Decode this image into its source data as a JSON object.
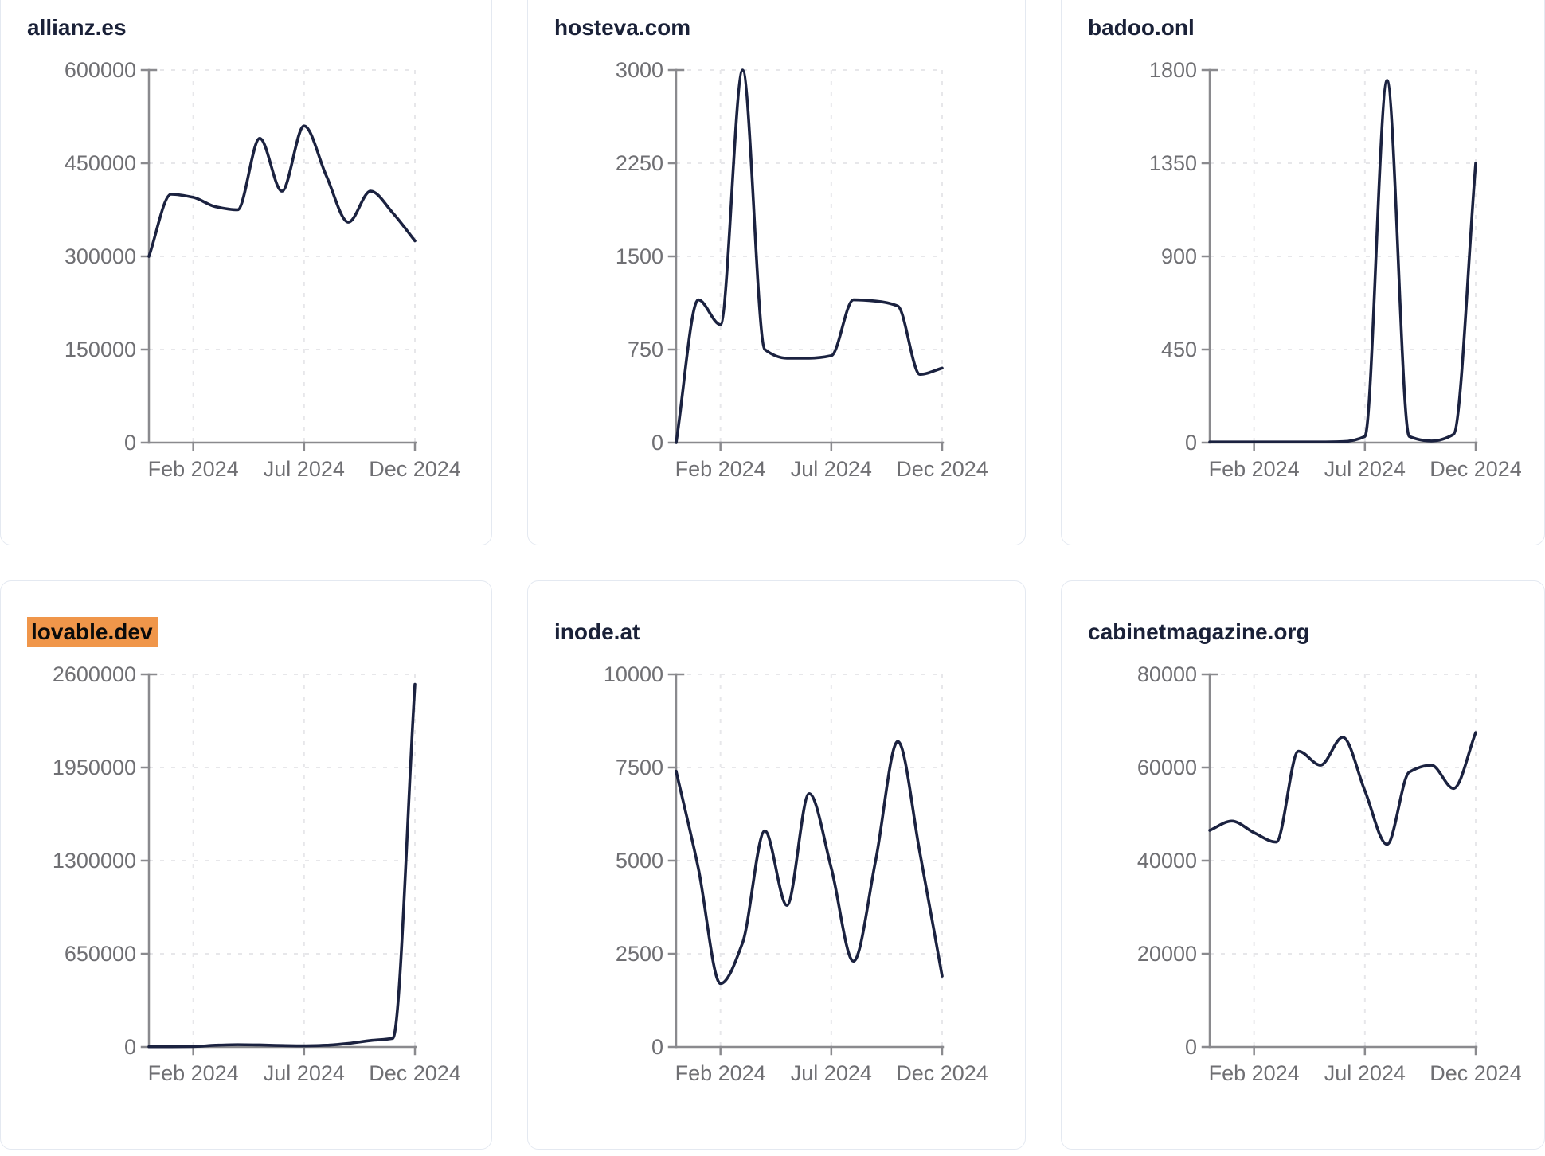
{
  "page": {
    "background": "#ffffff",
    "layout": "3x2-grid-of-line-charts"
  },
  "colors": {
    "line": "#1b2240",
    "title": "#1a2138",
    "axis": "#8a8a8e",
    "tick_label": "#6f6f73",
    "gridline": "#e7e7ea",
    "card_border": "#e4e9f1",
    "highlight": "#f0964a",
    "highlight_text": "#0b0b0b"
  },
  "chart_data": [
    {
      "type": "line",
      "title": "allianz.es",
      "highlighted": false,
      "x": [
        "Dec 2023",
        "Jan 2024",
        "Feb 2024",
        "Mar 2024",
        "Apr 2024",
        "May 2024",
        "Jun 2024",
        "Jul 2024",
        "Aug 2024",
        "Sep 2024",
        "Oct 2024",
        "Nov 2024",
        "Dec 2024"
      ],
      "values": [
        300000,
        400000,
        395000,
        380000,
        375000,
        490000,
        405000,
        510000,
        430000,
        355000,
        405000,
        370000,
        325000
      ],
      "ylim": [
        0,
        600000
      ],
      "y_tick_labels": [
        "600000",
        "450000",
        "300000",
        "150000",
        "0"
      ],
      "x_tick_labels": [
        "Feb 2024",
        "Jul 2024",
        "Dec 2024"
      ],
      "x_tick_indices": [
        2,
        7,
        12
      ],
      "grid": true,
      "legend": "none"
    },
    {
      "type": "line",
      "title": "hosteva.com",
      "highlighted": false,
      "x": [
        "Dec 2023",
        "Jan 2024",
        "Feb 2024",
        "Mar 2024",
        "Apr 2024",
        "May 2024",
        "Jun 2024",
        "Jul 2024",
        "Aug 2024",
        "Sep 2024",
        "Oct 2024",
        "Nov 2024",
        "Dec 2024"
      ],
      "values": [
        0,
        1150,
        950,
        3000,
        750,
        680,
        680,
        700,
        1150,
        1140,
        1100,
        550,
        600
      ],
      "ylim": [
        0,
        3000
      ],
      "y_tick_labels": [
        "3000",
        "2250",
        "1500",
        "750",
        "0"
      ],
      "x_tick_labels": [
        "Feb 2024",
        "Jul 2024",
        "Dec 2024"
      ],
      "x_tick_indices": [
        2,
        7,
        12
      ],
      "grid": true,
      "legend": "none"
    },
    {
      "type": "line",
      "title": "badoo.onl",
      "highlighted": false,
      "x": [
        "Dec 2023",
        "Jan 2024",
        "Feb 2024",
        "Mar 2024",
        "Apr 2024",
        "May 2024",
        "Jun 2024",
        "Jul 2024",
        "Aug 2024",
        "Sep 2024",
        "Oct 2024",
        "Nov 2024",
        "Dec 2024"
      ],
      "values": [
        3,
        3,
        3,
        3,
        3,
        3,
        5,
        30,
        1750,
        30,
        8,
        40,
        1350
      ],
      "ylim": [
        0,
        1800
      ],
      "y_tick_labels": [
        "1800",
        "1350",
        "900",
        "450",
        "0"
      ],
      "x_tick_labels": [
        "Feb 2024",
        "Jul 2024",
        "Dec 2024"
      ],
      "x_tick_indices": [
        2,
        7,
        12
      ],
      "grid": true,
      "legend": "none"
    },
    {
      "type": "line",
      "title": "lovable.dev",
      "highlighted": true,
      "x": [
        "Dec 2023",
        "Jan 2024",
        "Feb 2024",
        "Mar 2024",
        "Apr 2024",
        "May 2024",
        "Jun 2024",
        "Jul 2024",
        "Aug 2024",
        "Sep 2024",
        "Oct 2024",
        "Nov 2024",
        "Dec 2024"
      ],
      "values": [
        2000,
        2000,
        3000,
        12000,
        16000,
        14000,
        10000,
        8000,
        12000,
        25000,
        45000,
        60000,
        2530000
      ],
      "ylim": [
        0,
        2600000
      ],
      "y_tick_labels": [
        "2600000",
        "1950000",
        "1300000",
        "650000",
        "0"
      ],
      "x_tick_labels": [
        "Feb 2024",
        "Jul 2024",
        "Dec 2024"
      ],
      "x_tick_indices": [
        2,
        7,
        12
      ],
      "grid": true,
      "legend": "none"
    },
    {
      "type": "line",
      "title": "inode.at",
      "highlighted": false,
      "x": [
        "Dec 2023",
        "Jan 2024",
        "Feb 2024",
        "Mar 2024",
        "Apr 2024",
        "May 2024",
        "Jun 2024",
        "Jul 2024",
        "Aug 2024",
        "Sep 2024",
        "Oct 2024",
        "Nov 2024",
        "Dec 2024"
      ],
      "values": [
        7400,
        4800,
        1700,
        2800,
        5800,
        3800,
        6800,
        4800,
        2300,
        5000,
        8200,
        5200,
        1900
      ],
      "ylim": [
        0,
        10000
      ],
      "y_tick_labels": [
        "10000",
        "7500",
        "5000",
        "2500",
        "0"
      ],
      "x_tick_labels": [
        "Feb 2024",
        "Jul 2024",
        "Dec 2024"
      ],
      "x_tick_indices": [
        2,
        7,
        12
      ],
      "grid": true,
      "legend": "none"
    },
    {
      "type": "line",
      "title": "cabinetmagazine.org",
      "highlighted": false,
      "x": [
        "Dec 2023",
        "Jan 2024",
        "Feb 2024",
        "Mar 2024",
        "Apr 2024",
        "May 2024",
        "Jun 2024",
        "Jul 2024",
        "Aug 2024",
        "Sep 2024",
        "Oct 2024",
        "Nov 2024",
        "Dec 2024"
      ],
      "values": [
        46500,
        48500,
        46000,
        44000,
        63500,
        60500,
        66500,
        55000,
        43500,
        59000,
        60500,
        55500,
        67500
      ],
      "ylim": [
        0,
        80000
      ],
      "y_tick_labels": [
        "80000",
        "60000",
        "40000",
        "20000",
        "0"
      ],
      "x_tick_labels": [
        "Feb 2024",
        "Jul 2024",
        "Dec 2024"
      ],
      "x_tick_indices": [
        2,
        7,
        12
      ],
      "grid": true,
      "legend": "none"
    }
  ]
}
